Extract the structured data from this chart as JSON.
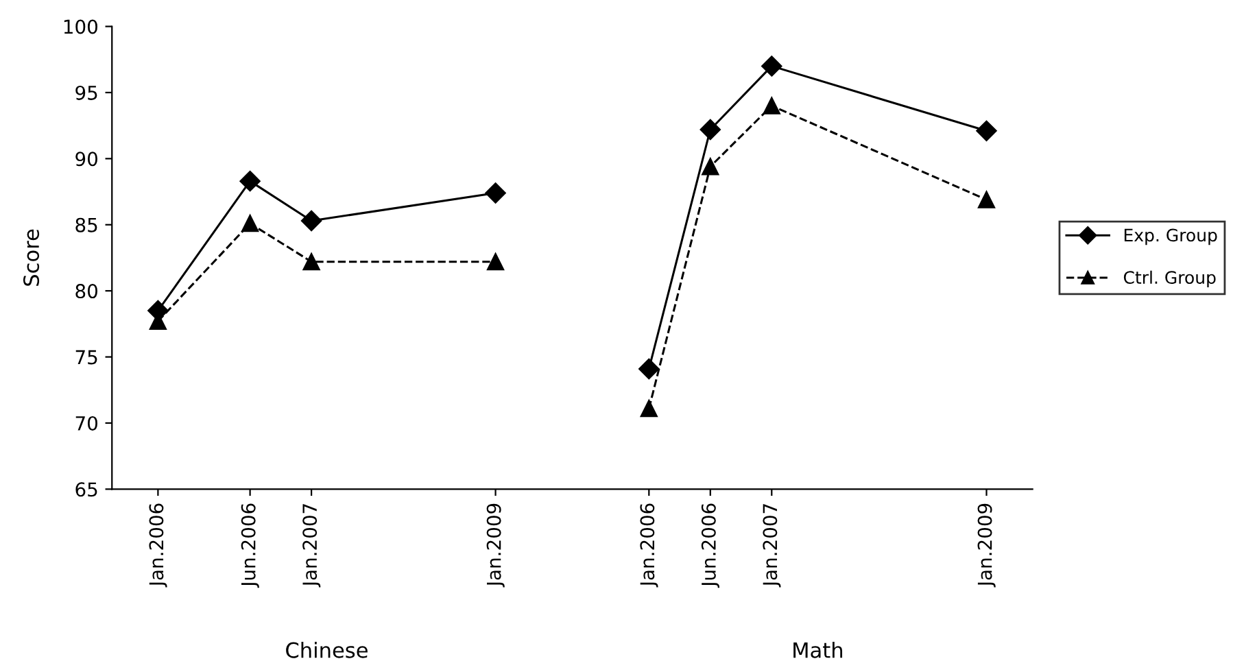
{
  "chart_data": {
    "type": "line",
    "ylabel": "Score",
    "categories": [
      null,
      "Jan.2006",
      null,
      null,
      "Jun.2006",
      null,
      "Jan.2007",
      null,
      null,
      null,
      null,
      null,
      "Jan.2009",
      null,
      null,
      null,
      null,
      "Jan.2006",
      null,
      "Jun.2006",
      null,
      "Jan.2007",
      null,
      null,
      null,
      null,
      null,
      null,
      "Jan.2009",
      null
    ],
    "series": [
      {
        "name": "Exp. Group",
        "color": "#000000",
        "marker": "diamond",
        "line_style": "solid",
        "values": [
          null,
          78.5,
          null,
          null,
          88.3,
          null,
          85.3,
          null,
          null,
          null,
          null,
          null,
          87.4,
          null,
          null,
          null,
          null,
          null,
          null,
          null,
          null,
          null,
          null,
          null,
          null,
          null,
          null,
          null,
          null,
          null
        ]
      },
      {
        "name": "Ctrl. Group",
        "color": "#000000",
        "marker": "triangle",
        "line_style": "dashed",
        "values": [
          null,
          77.7,
          null,
          null,
          85.1,
          null,
          82.2,
          null,
          null,
          null,
          null,
          null,
          82.2,
          null,
          null,
          null,
          null,
          null,
          null,
          null,
          null,
          null,
          null,
          null,
          null,
          null,
          null,
          null,
          null,
          null
        ]
      },
      {
        "color": "#000000",
        "marker": "diamond",
        "line_style": "solid",
        "values": [
          null,
          null,
          null,
          null,
          null,
          null,
          null,
          null,
          null,
          null,
          null,
          null,
          null,
          null,
          null,
          null,
          null,
          74.1,
          null,
          92.2,
          null,
          97.0,
          null,
          null,
          null,
          null,
          null,
          null,
          92.1,
          null
        ]
      },
      {
        "color": "#000000",
        "marker": "triangle",
        "line_style": "dashed",
        "values": [
          null,
          null,
          null,
          null,
          null,
          null,
          null,
          null,
          null,
          null,
          null,
          null,
          null,
          null,
          null,
          null,
          null,
          71.1,
          null,
          89.4,
          null,
          94.0,
          null,
          null,
          null,
          null,
          null,
          null,
          86.9,
          null
        ]
      }
    ],
    "annotations": [
      "Chinese",
      "Math"
    ],
    "ylim": [
      65,
      100
    ],
    "yticks": [
      65,
      70,
      75,
      80,
      85,
      90,
      95,
      100
    ],
    "grid": false,
    "legend": "right"
  }
}
